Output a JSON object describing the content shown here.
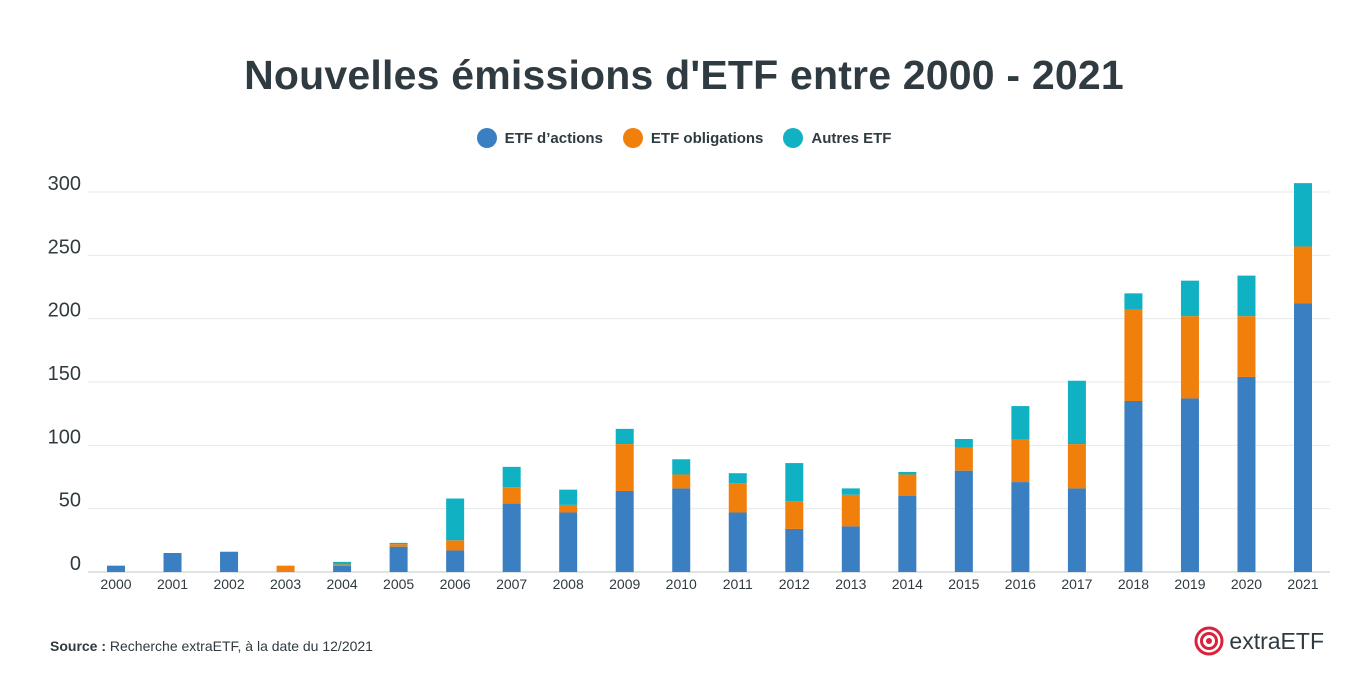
{
  "chart_data": {
    "type": "bar",
    "stacked": true,
    "title": "Nouvelles émissions d'ETF entre 2000 - 2021",
    "xlabel": "",
    "ylabel": "",
    "ylim": [
      0,
      300
    ],
    "yticks": [
      0,
      50,
      100,
      150,
      200,
      250,
      300
    ],
    "grid": true,
    "legend_position": "top-center",
    "categories": [
      "2000",
      "2001",
      "2002",
      "2003",
      "2004",
      "2005",
      "2006",
      "2007",
      "2008",
      "2009",
      "2010",
      "2011",
      "2012",
      "2013",
      "2014",
      "2015",
      "2016",
      "2017",
      "2018",
      "2019",
      "2020",
      "2021"
    ],
    "series": [
      {
        "name": "ETF d’actions",
        "color": "#3a7fc1",
        "values": [
          5,
          15,
          16,
          0,
          5,
          20,
          17,
          54,
          47,
          64,
          66,
          47,
          34,
          36,
          60,
          80,
          71,
          66,
          135,
          137,
          154,
          212
        ]
      },
      {
        "name": "ETF obligations",
        "color": "#f07f0b",
        "values": [
          0,
          0,
          0,
          5,
          1,
          2,
          8,
          13,
          6,
          37,
          11,
          23,
          22,
          25,
          17,
          18,
          34,
          35,
          72,
          65,
          48,
          45
        ]
      },
      {
        "name": "Autres ETF",
        "color": "#11b1c4",
        "values": [
          0,
          0,
          0,
          0,
          2,
          1,
          33,
          16,
          12,
          12,
          12,
          8,
          30,
          5,
          2,
          7,
          26,
          50,
          13,
          28,
          32,
          50
        ]
      }
    ]
  },
  "source": {
    "label": "Source :",
    "text": " Recherche extraETF, à la date du 12/2021"
  },
  "brand": {
    "name": "extraETF",
    "color": "#d9223c"
  }
}
